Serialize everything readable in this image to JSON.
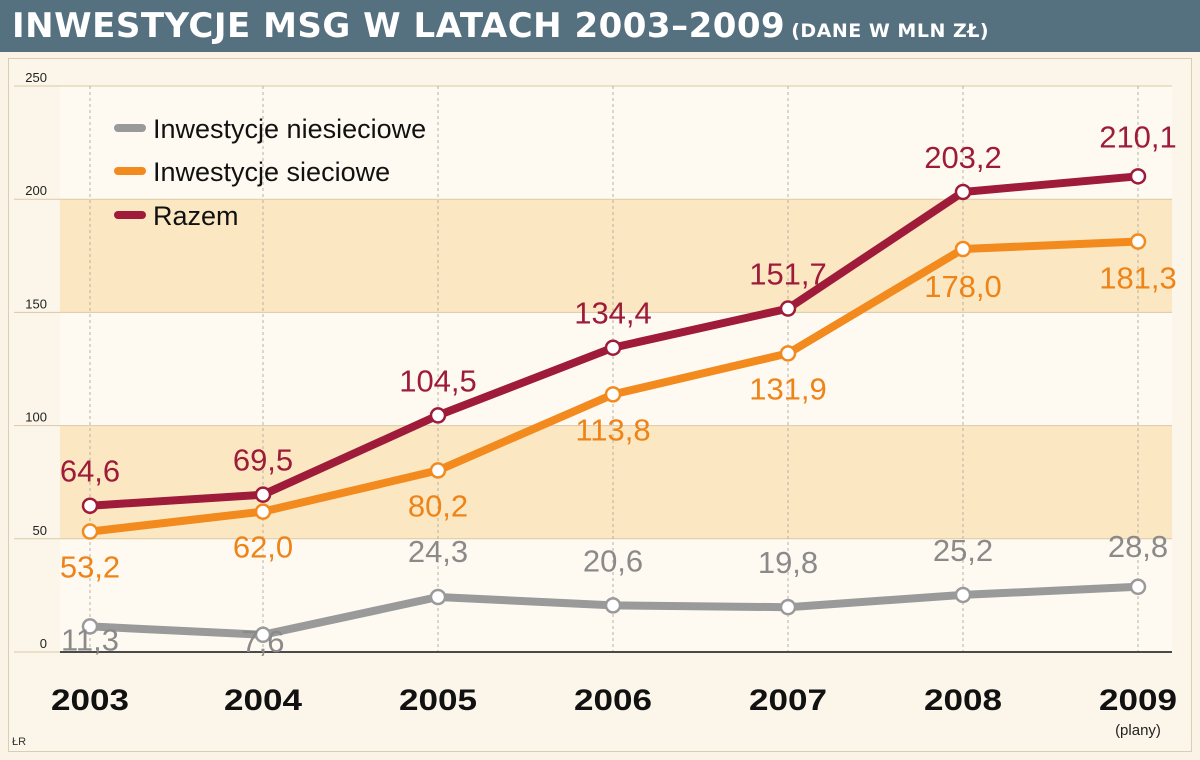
{
  "header": {
    "title": "INWESTYCJE MSG W LATACH 2003–2009",
    "subtitle": "(DANE W MLN ZŁ)"
  },
  "credit": "ŁR",
  "chart_data": {
    "type": "line",
    "x": [
      "2003",
      "2004",
      "2005",
      "2006",
      "2007",
      "2008",
      "2009"
    ],
    "x_notes": [
      "",
      "",
      "",
      "",
      "",
      "",
      "(plany)"
    ],
    "ylim": [
      0,
      250
    ],
    "yticks": [
      0,
      50,
      100,
      150,
      200,
      250
    ],
    "grid": true,
    "legend_placement": "top-left",
    "series": [
      {
        "name": "Inwestycje niesieciowe",
        "color": "#9a9a9a",
        "values": [
          11.3,
          7.6,
          24.3,
          20.6,
          19.8,
          25.2,
          28.8
        ],
        "labels": [
          "11,3",
          "7,6",
          "24,3",
          "20,6",
          "19,8",
          "25,2",
          "28,8"
        ]
      },
      {
        "name": "Inwestycje sieciowe",
        "color": "#f28a1e",
        "values": [
          53.2,
          62.0,
          80.2,
          113.8,
          131.9,
          178.0,
          181.3
        ],
        "labels": [
          "53,2",
          "62,0",
          "80,2",
          "113,8",
          "131,9",
          "178,0",
          "181,3"
        ]
      },
      {
        "name": "Razem",
        "color": "#9e1b3a",
        "values": [
          64.6,
          69.5,
          104.5,
          134.4,
          151.7,
          203.2,
          210.1
        ],
        "labels": [
          "64,6",
          "69,5",
          "104,5",
          "134,4",
          "151,7",
          "203,2",
          "210,1"
        ]
      }
    ]
  }
}
